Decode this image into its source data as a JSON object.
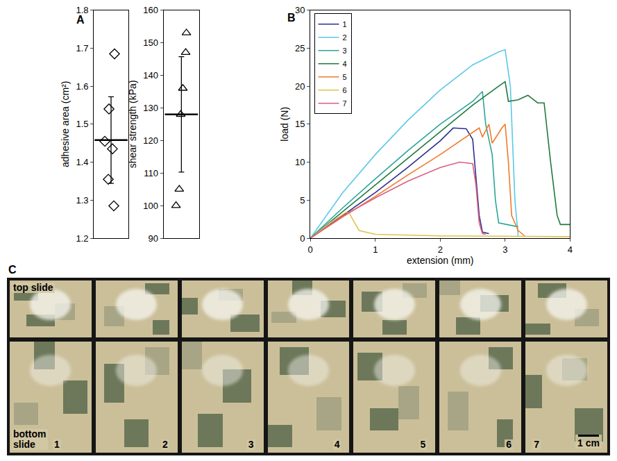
{
  "chart_data": [
    {
      "type": "scatter",
      "panel": "A",
      "y_label": "adhesive area (cm²)",
      "values": [
        1.685,
        1.54,
        1.455,
        1.435,
        1.355,
        1.285
      ],
      "mean": 1.458,
      "error": 0.114,
      "marker": "diamond",
      "color": "#000000",
      "ylim": [
        1.2,
        1.8
      ],
      "yticks": [
        1.2,
        1.3,
        1.4,
        1.5,
        1.6,
        1.7,
        1.8
      ],
      "grid": false,
      "tick_labels": "y"
    },
    {
      "type": "scatter",
      "y_label": "shear strength (kPa)",
      "values": [
        153,
        147,
        136,
        128,
        105,
        100
      ],
      "mean": 128,
      "error": 17.7,
      "marker": "triangle-up",
      "color": "#000000",
      "ylim": [
        90,
        160
      ],
      "yticks": [
        90,
        100,
        110,
        120,
        130,
        140,
        150,
        160
      ],
      "grid": false,
      "tick_labels": "y"
    },
    {
      "type": "line",
      "panel": "B",
      "x_label": "extension (mm)",
      "y_label": "load (N)",
      "xlim": [
        0,
        4
      ],
      "xticks": [
        0,
        1,
        2,
        3,
        4
      ],
      "ylim": [
        0,
        30
      ],
      "yticks": [
        0,
        5,
        10,
        15,
        20,
        25,
        30
      ],
      "grid": false,
      "legend": "upper left",
      "series": [
        {
          "name": "1",
          "color": "#2b2f8f",
          "x": [
            0,
            0.5,
            1,
            1.5,
            2,
            2.2,
            2.4,
            2.5,
            2.6,
            2.65,
            2.75
          ],
          "values": [
            0,
            3,
            6,
            9.3,
            12.8,
            14.5,
            14.4,
            13,
            3,
            0.8,
            0.6
          ]
        },
        {
          "name": "2",
          "color": "#5bc8e8",
          "x": [
            0,
            0.5,
            1,
            1.5,
            2,
            2.5,
            2.9,
            3.0,
            3.08,
            3.15,
            3.2
          ],
          "values": [
            0,
            6,
            11,
            15.5,
            19.5,
            22.8,
            24.5,
            24.8,
            20,
            5,
            0.3
          ]
        },
        {
          "name": "3",
          "color": "#2aa59a",
          "x": [
            0,
            0.5,
            1,
            1.5,
            2,
            2.5,
            2.65,
            2.7,
            2.8,
            2.85,
            2.9,
            3.2
          ],
          "values": [
            0,
            4,
            7.8,
            11.5,
            15,
            18,
            19.3,
            15,
            11,
            5,
            2,
            1.5
          ]
        },
        {
          "name": "4",
          "color": "#1e7a3c",
          "x": [
            0,
            0.5,
            1,
            1.5,
            2,
            2.5,
            2.9,
            3.0,
            3.05,
            3.2,
            3.35,
            3.5,
            3.6,
            3.7,
            3.8,
            3.85,
            4
          ],
          "values": [
            0,
            3.5,
            7,
            10.5,
            14,
            17.5,
            20,
            20.6,
            18,
            18.2,
            18.8,
            17.8,
            17.8,
            10,
            3,
            1.8,
            1.8
          ]
        },
        {
          "name": "5",
          "color": "#f07a2a",
          "x": [
            0,
            0.5,
            1,
            1.5,
            2,
            2.4,
            2.6,
            2.65,
            2.75,
            2.8,
            2.95,
            3.0,
            3.05,
            3.1,
            3.2,
            3.3
          ],
          "values": [
            0,
            2.8,
            5.5,
            8.3,
            11,
            13.3,
            14.5,
            13.3,
            15,
            12.5,
            14.5,
            15,
            10,
            3,
            1,
            0.3
          ]
        },
        {
          "name": "6",
          "color": "#e0c050",
          "x": [
            0,
            0.3,
            0.55,
            0.6,
            0.65,
            0.75,
            1,
            2,
            4
          ],
          "values": [
            0,
            2,
            3.4,
            3.3,
            2.5,
            1,
            0.5,
            0.3,
            0.2
          ]
        },
        {
          "name": "7",
          "color": "#d9607f",
          "x": [
            0,
            0.5,
            1,
            1.5,
            2,
            2.3,
            2.5,
            2.55,
            2.6,
            2.65,
            2.7
          ],
          "values": [
            0,
            2.9,
            5.3,
            7.5,
            9.3,
            10,
            9.8,
            7,
            2,
            0.6,
            0.5
          ]
        }
      ]
    }
  ],
  "panel_labels": [
    "A",
    "B",
    "C"
  ],
  "photo": {
    "top_label": "top slide",
    "bottom_label": "bottom slide",
    "samples": [
      "1",
      "2",
      "3",
      "4",
      "5",
      "6",
      "7"
    ],
    "scale_bar": "1 cm"
  }
}
